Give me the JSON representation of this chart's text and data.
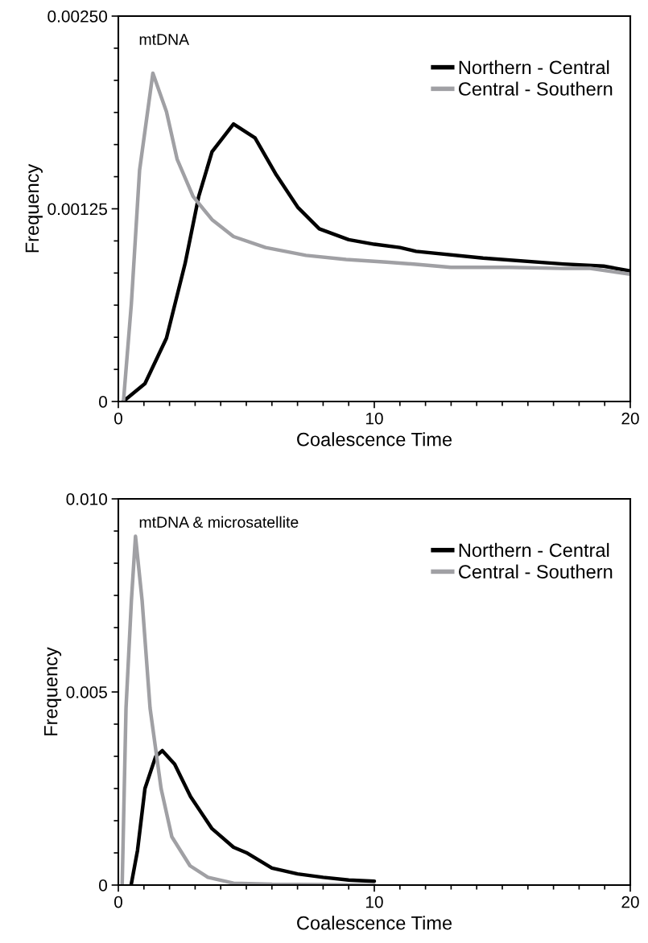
{
  "chart_data": [
    {
      "type": "line",
      "xlabel": "Coalescence Time",
      "ylabel": "Frequency",
      "annotations": [
        "mtDNA"
      ],
      "legend": "top right",
      "grid": false,
      "marker": "none",
      "line_style": "solid",
      "xlim": [
        0,
        20
      ],
      "ylim": [
        0,
        0.0025
      ],
      "xticks": [
        0,
        {
          "value": 1,
          "label": null
        },
        {
          "value": 2,
          "label": null
        },
        {
          "value": 3,
          "label": null
        },
        {
          "value": 4,
          "label": null
        },
        {
          "value": 5,
          "label": null
        },
        {
          "value": 6,
          "label": null
        },
        {
          "value": 7,
          "label": null
        },
        {
          "value": 8,
          "label": null
        },
        {
          "value": 9,
          "label": null
        },
        10,
        {
          "value": 11,
          "label": null
        },
        {
          "value": 12,
          "label": null
        },
        {
          "value": 13,
          "label": null
        },
        {
          "value": 14,
          "label": null
        },
        {
          "value": 15,
          "label": null
        },
        {
          "value": 16,
          "label": null
        },
        {
          "value": 17,
          "label": null
        },
        {
          "value": 18,
          "label": null
        },
        {
          "value": 19,
          "label": null
        },
        20
      ],
      "yticks": [
        {
          "value": 0,
          "label": "0"
        },
        {
          "value": 0.000208333,
          "label": null
        },
        {
          "value": 0.000416667,
          "label": null
        },
        {
          "value": 0.000625,
          "label": null
        },
        {
          "value": 0.000833333,
          "label": null
        },
        {
          "value": 0.00104167,
          "label": null
        },
        {
          "value": 0.00125,
          "label": "0.00125"
        },
        {
          "value": 0.00145833,
          "label": null
        },
        {
          "value": 0.00166667,
          "label": null
        },
        {
          "value": 0.001875,
          "label": null
        },
        {
          "value": 0.00208333,
          "label": null
        },
        {
          "value": 0.00229167,
          "label": null
        },
        {
          "value": 0.0025,
          "label": "0.00250"
        }
      ],
      "series": [
        {
          "name": "Northern - Central",
          "color": "#000000",
          "x": [
            0.19,
            1.04,
            1.88,
            2.61,
            3.14,
            3.66,
            4.5,
            5.34,
            6.17,
            7.01,
            7.85,
            9.0,
            10.0,
            11.0,
            11.63,
            14.25,
            17.39,
            18.96,
            20
          ],
          "values": [
            0,
            0.000116,
            0.000411,
            0.000896,
            0.00133,
            0.00162,
            0.0018,
            0.00171,
            0.00147,
            0.00126,
            0.00112,
            0.00105,
            0.00102,
            0.000999,
            0.000974,
            0.00093,
            0.000892,
            0.000878,
            0.000847
          ]
        },
        {
          "name": "Central - Southern",
          "color": "#a0a0a4",
          "x": [
            0.2,
            0.51,
            0.83,
            1.35,
            1.88,
            2.3,
            2.92,
            3.66,
            4.5,
            5.75,
            7.33,
            8.9,
            10.47,
            11.73,
            12.99,
            15.28,
            17.39,
            18.43,
            20
          ],
          "values": [
            0,
            0.000636,
            0.0015,
            0.00213,
            0.00188,
            0.00157,
            0.00133,
            0.00118,
            0.00107,
            0.000999,
            0.000948,
            0.000921,
            0.000904,
            0.000889,
            0.00087,
            0.00087,
            0.000863,
            0.000864,
            0.000826
          ]
        }
      ]
    },
    {
      "type": "line",
      "xlabel": "Coalescence Time",
      "ylabel": "Frequency",
      "annotations": [
        "mtDNA & microsatellite"
      ],
      "legend": "top right",
      "grid": false,
      "marker": "none",
      "line_style": "solid",
      "xlim": [
        0,
        20
      ],
      "ylim": [
        0,
        0.01
      ],
      "xticks": [
        0,
        {
          "value": 1,
          "label": null
        },
        {
          "value": 2,
          "label": null
        },
        {
          "value": 3,
          "label": null
        },
        {
          "value": 4,
          "label": null
        },
        {
          "value": 5,
          "label": null
        },
        {
          "value": 6,
          "label": null
        },
        {
          "value": 7,
          "label": null
        },
        {
          "value": 8,
          "label": null
        },
        {
          "value": 9,
          "label": null
        },
        10,
        {
          "value": 11,
          "label": null
        },
        {
          "value": 12,
          "label": null
        },
        {
          "value": 13,
          "label": null
        },
        {
          "value": 14,
          "label": null
        },
        {
          "value": 15,
          "label": null
        },
        {
          "value": 16,
          "label": null
        },
        {
          "value": 17,
          "label": null
        },
        {
          "value": 18,
          "label": null
        },
        {
          "value": 19,
          "label": null
        },
        20
      ],
      "yticks": [
        {
          "value": 0,
          "label": "0"
        },
        {
          "value": 0.000833333,
          "label": null
        },
        {
          "value": 0.00166667,
          "label": null
        },
        {
          "value": 0.0025,
          "label": null
        },
        {
          "value": 0.00333333,
          "label": null
        },
        {
          "value": 0.00416667,
          "label": null
        },
        {
          "value": 0.005,
          "label": "0.005"
        },
        {
          "value": 0.00583333,
          "label": null
        },
        {
          "value": 0.00666667,
          "label": null
        },
        {
          "value": 0.0075,
          "label": null
        },
        {
          "value": 0.00833333,
          "label": null
        },
        {
          "value": 0.00916667,
          "label": null
        },
        {
          "value": 0.01,
          "label": "0.010"
        }
      ],
      "series": [
        {
          "name": "Northern - Central",
          "color": "#000000",
          "x": [
            0.5,
            0.75,
            1.04,
            1.46,
            1.72,
            2.2,
            2.82,
            3.66,
            4.5,
            5.0,
            6.0,
            7.0,
            8.0,
            9.0,
            10.0
          ],
          "values": [
            0,
            0.0009,
            0.0025,
            0.00333,
            0.00348,
            0.00313,
            0.00229,
            0.00146,
            0.00098,
            0.00084,
            0.00044,
            0.00029,
            0.0002,
            0.00013,
            0.0001
          ]
        },
        {
          "name": "Central - Southern",
          "color": "#a0a0a4",
          "x": [
            0.15,
            0.3,
            0.51,
            0.67,
            0.93,
            1.24,
            1.67,
            2.09,
            2.8,
            3.5,
            4.5,
            6.0,
            10.0
          ],
          "values": [
            0,
            0.00458,
            0.00736,
            0.00903,
            0.00736,
            0.00458,
            0.0025,
            0.00125,
            0.0005,
            0.0002,
            5e-05,
            2e-05,
            0
          ]
        }
      ]
    }
  ]
}
